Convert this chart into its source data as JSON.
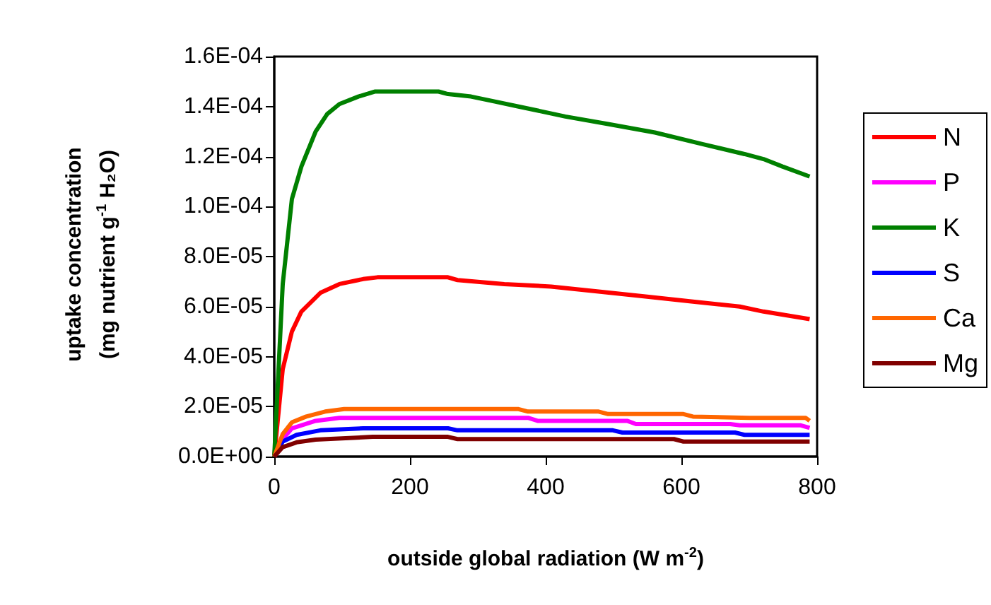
{
  "chart_data": {
    "type": "line",
    "xlabel": "outside global radiation (W m$^{-2}$)",
    "ylabel": "uptake concentration\n(mg nutrient g$^{-1}$ H₂O)",
    "xlim": [
      0,
      800
    ],
    "xticks": [
      0,
      200,
      400,
      600,
      800
    ],
    "ylim": [
      0,
      0.00016
    ],
    "yticks": [
      {
        "value": 0,
        "label": "0.0E+00"
      },
      {
        "value": 2e-05,
        "label": "2.0E-05"
      },
      {
        "value": 4e-05,
        "label": "4.0E-05"
      },
      {
        "value": 6e-05,
        "label": "6.0E-05"
      },
      {
        "value": 8e-05,
        "label": "8.0E-05"
      },
      {
        "value": 0.0001,
        "label": "1.0E-04"
      },
      {
        "value": 0.00012,
        "label": "1.2E-04"
      },
      {
        "value": 0.00014,
        "label": "1.4E-04"
      },
      {
        "value": 0.00016,
        "label": "1.6E-04"
      }
    ],
    "grid": false,
    "legend": "right",
    "marker": "none",
    "line_style": "solid",
    "series": [
      {
        "name": "N",
        "color": "#ff0000",
        "x": [
          0,
          12.5,
          26,
          40,
          68,
          96,
          131,
          152,
          256,
          270,
          339,
          408,
          478,
          547,
          617,
          686,
          721,
          789
        ],
        "values": [
          0,
          3.5e-05,
          5e-05,
          5.8e-05,
          6.55e-05,
          6.9e-05,
          7.1e-05,
          7.17e-05,
          7.17e-05,
          7.06e-05,
          6.9e-05,
          6.8e-05,
          6.6e-05,
          6.4e-05,
          6.2e-05,
          6e-05,
          5.8e-05,
          5.5e-05
        ]
      },
      {
        "name": "P",
        "color": "#ff00ff",
        "x": [
          0,
          12.5,
          26,
          61,
          96,
          374,
          388,
          520,
          533,
          672,
          686,
          776,
          789
        ],
        "values": [
          0,
          7e-06,
          1.13e-05,
          1.43e-05,
          1.55e-05,
          1.55e-05,
          1.43e-05,
          1.43e-05,
          1.3e-05,
          1.3e-05,
          1.25e-05,
          1.25e-05,
          1.15e-05
        ]
      },
      {
        "name": "K",
        "color": "#008000",
        "x": [
          0,
          12.5,
          26,
          40,
          61,
          78,
          96,
          124,
          148,
          242,
          256,
          290,
          325,
          360,
          395,
          429,
          492,
          561,
          631,
          693,
          721,
          749,
          789
        ],
        "values": [
          0,
          6.9e-05,
          0.000103,
          0.000116,
          0.00013,
          0.000137,
          0.000141,
          0.000144,
          0.000146,
          0.000146,
          0.000145,
          0.000144,
          0.000142,
          0.00014,
          0.000138,
          0.000136,
          0.000133,
          0.0001296,
          0.000125,
          0.000121,
          0.000119,
          0.000116,
          0.000112
        ]
      },
      {
        "name": "S",
        "color": "#0000ff",
        "x": [
          0,
          12.5,
          33,
          68,
          131,
          256,
          270,
          499,
          513,
          679,
          693,
          789
        ],
        "values": [
          0,
          6e-06,
          8.7e-06,
          1.05e-05,
          1.13e-05,
          1.13e-05,
          1.05e-05,
          1.05e-05,
          9.6e-06,
          9.6e-06,
          8.7e-06,
          8.7e-06
        ]
      },
      {
        "name": "Ca",
        "color": "#ff6600",
        "x": [
          0,
          12.5,
          26,
          47,
          75,
          103,
          360,
          374,
          478,
          492,
          603,
          617,
          700,
          783,
          789
        ],
        "values": [
          0,
          9e-06,
          1.37e-05,
          1.6e-05,
          1.8e-05,
          1.9e-05,
          1.9e-05,
          1.8e-05,
          1.8e-05,
          1.7e-05,
          1.7e-05,
          1.6e-05,
          1.55e-05,
          1.55e-05,
          1.43e-05
        ]
      },
      {
        "name": "Mg",
        "color": "#800000",
        "x": [
          0,
          12.5,
          33,
          61,
          145,
          256,
          270,
          589,
          603,
          789
        ],
        "values": [
          0,
          3.8e-06,
          5.7e-06,
          6.8e-06,
          7.9e-06,
          7.9e-06,
          7e-06,
          7e-06,
          6e-06,
          6e-06
        ]
      }
    ]
  }
}
